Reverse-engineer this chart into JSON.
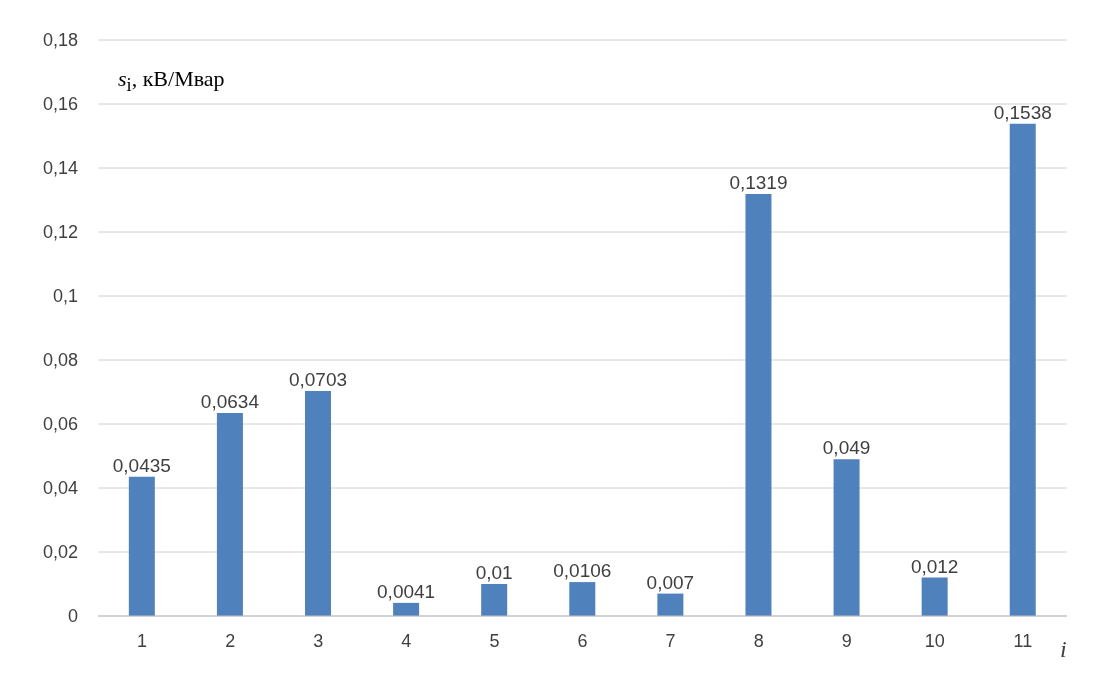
{
  "chart_data": {
    "type": "bar",
    "ylabel": "s$_{i}$, кВ/Мвар",
    "xlabel": "i",
    "categories": [
      "1",
      "2",
      "3",
      "4",
      "5",
      "6",
      "7",
      "8",
      "9",
      "10",
      "11"
    ],
    "values": [
      0.0435,
      0.0634,
      0.0703,
      0.0041,
      0.01,
      0.0106,
      0.007,
      0.1319,
      0.049,
      0.012,
      0.1538
    ],
    "value_labels": [
      "0,0435",
      "0,0634",
      "0,0703",
      "0,0041",
      "0,01",
      "0,0106",
      "0,007",
      "0,1319",
      "0,049",
      "0,012",
      "0,1538"
    ],
    "color": "#4f81bd",
    "ylim": [
      0,
      0.18
    ],
    "yticks": [
      0,
      {
        "value": 0.02,
        "label": "0,02"
      },
      {
        "value": 0.04,
        "label": "0,04"
      },
      {
        "value": 0.06,
        "label": "0,06"
      },
      {
        "value": 0.08,
        "label": "0,08"
      },
      {
        "value": 0.1,
        "label": "0,1"
      },
      {
        "value": 0.12,
        "label": "0,12"
      },
      {
        "value": 0.14,
        "label": "0,14"
      },
      {
        "value": 0.16,
        "label": "0,16"
      },
      {
        "value": 0.18,
        "label": "0,18"
      }
    ],
    "grid": "y"
  }
}
